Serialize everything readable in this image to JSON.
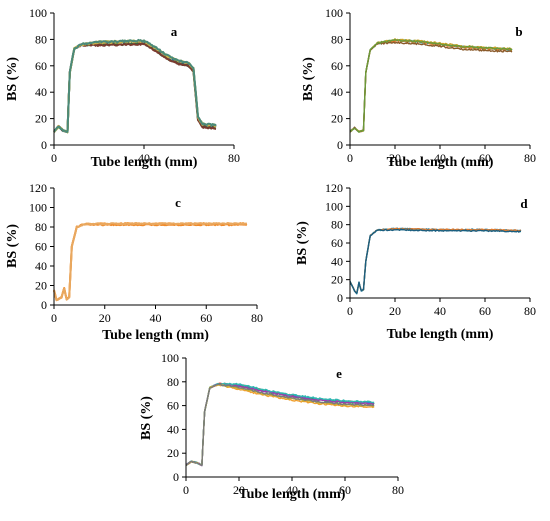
{
  "figure": {
    "panels": [
      {
        "label": "a",
        "xlabel": "Tube length (mm)",
        "ylabel": "BS (%)",
        "xlim": [
          0,
          80
        ],
        "ylim": [
          0,
          100
        ],
        "xticks": [
          "0",
          "40",
          "80"
        ],
        "yticks": [
          "0",
          "20",
          "40",
          "60",
          "80",
          "100"
        ],
        "colors": [
          "#2e5a8c",
          "#2f6b3f",
          "#7a3b2f",
          "#8ca23a",
          "#c9b04a",
          "#4a8a7a"
        ]
      },
      {
        "label": "b",
        "xlabel": "Tube length (mm)",
        "ylabel": "BS (%)",
        "xlim": [
          0,
          80
        ],
        "ylim": [
          0,
          100
        ],
        "xticks": [
          "0",
          "20",
          "40",
          "60",
          "80"
        ],
        "yticks": [
          "0",
          "20",
          "40",
          "60",
          "80",
          "100"
        ],
        "colors": [
          "#5b8fd6",
          "#2aa2b8",
          "#e07a2e",
          "#c9a227",
          "#8a5a2b",
          "#6a9a3a"
        ]
      },
      {
        "label": "c",
        "xlabel": "Tube length (mm)",
        "ylabel": "BS (%)",
        "xlim": [
          0,
          80
        ],
        "ylim": [
          0,
          120
        ],
        "xticks": [
          "0",
          "20",
          "40",
          "60",
          "80"
        ],
        "yticks": [
          "0",
          "20",
          "40",
          "60",
          "80",
          "100",
          "120"
        ],
        "colors": [
          "#f4a04a",
          "#f08a2a",
          "#e8a860"
        ]
      },
      {
        "label": "d",
        "xlabel": "Tube length (mm)",
        "ylabel": "BS (%)",
        "xlim": [
          0,
          80
        ],
        "ylim": [
          0,
          120
        ],
        "xticks": [
          "0",
          "20",
          "40",
          "60",
          "80"
        ],
        "yticks": [
          "0",
          "20",
          "40",
          "60",
          "80",
          "100",
          "120"
        ],
        "colors": [
          "#1e7fa0",
          "#2a9aa8",
          "#e07a2e",
          "#1a5e80"
        ]
      },
      {
        "label": "e",
        "xlabel": "Tube length (mm)",
        "ylabel": "BS (%)",
        "xlim": [
          0,
          80
        ],
        "ylim": [
          0,
          100
        ],
        "xticks": [
          "0",
          "20",
          "40",
          "60",
          "80"
        ],
        "yticks": [
          "0",
          "20",
          "40",
          "60",
          "80",
          "100"
        ],
        "colors": [
          "#e02a2a",
          "#f0a030",
          "#2a8ad0",
          "#2aa860",
          "#a03ab0",
          "#30b8b0",
          "#c8b030",
          "#7a7a7a"
        ]
      }
    ]
  },
  "chart_data": [
    {
      "type": "line",
      "label": "a",
      "xlim": [
        0,
        80
      ],
      "ylim": [
        0,
        100
      ],
      "series_profile": [
        [
          0,
          10
        ],
        [
          2,
          14
        ],
        [
          4,
          11
        ],
        [
          6,
          10
        ],
        [
          7,
          55
        ],
        [
          9,
          73
        ],
        [
          12,
          76
        ],
        [
          20,
          77
        ],
        [
          40,
          78
        ],
        [
          45,
          73
        ],
        [
          50,
          67
        ],
        [
          55,
          63
        ],
        [
          60,
          61
        ],
        [
          62,
          57
        ],
        [
          64,
          20
        ],
        [
          66,
          15
        ],
        [
          72,
          14
        ]
      ],
      "n_series": 6,
      "grid": false
    },
    {
      "type": "line",
      "label": "b",
      "xlim": [
        0,
        80
      ],
      "ylim": [
        0,
        100
      ],
      "series_profile": [
        [
          0,
          10
        ],
        [
          2,
          13
        ],
        [
          4,
          10
        ],
        [
          6,
          11
        ],
        [
          7,
          55
        ],
        [
          9,
          72
        ],
        [
          12,
          77
        ],
        [
          20,
          79
        ],
        [
          30,
          78
        ],
        [
          40,
          76
        ],
        [
          50,
          74
        ],
        [
          60,
          73
        ],
        [
          72,
          72
        ]
      ],
      "n_series": 6,
      "grid": false
    },
    {
      "type": "line",
      "label": "c",
      "xlim": [
        0,
        80
      ],
      "ylim": [
        0,
        120
      ],
      "series_profile": [
        [
          0,
          15
        ],
        [
          1,
          5
        ],
        [
          3,
          8
        ],
        [
          4,
          17
        ],
        [
          5,
          6
        ],
        [
          6,
          8
        ],
        [
          7,
          60
        ],
        [
          9,
          80
        ],
        [
          12,
          83
        ],
        [
          20,
          83
        ],
        [
          40,
          83
        ],
        [
          60,
          83
        ],
        [
          76,
          83
        ]
      ],
      "n_series": 3,
      "grid": false
    },
    {
      "type": "line",
      "label": "d",
      "xlim": [
        0,
        80
      ],
      "ylim": [
        0,
        120
      ],
      "series_profile": [
        [
          0,
          18
        ],
        [
          2,
          8
        ],
        [
          3,
          5
        ],
        [
          4,
          17
        ],
        [
          5,
          8
        ],
        [
          6,
          9
        ],
        [
          7,
          40
        ],
        [
          9,
          68
        ],
        [
          12,
          74
        ],
        [
          20,
          75
        ],
        [
          40,
          74
        ],
        [
          60,
          74
        ],
        [
          76,
          73
        ]
      ],
      "n_series": 4,
      "grid": false
    },
    {
      "type": "line",
      "label": "e",
      "xlim": [
        0,
        80
      ],
      "ylim": [
        0,
        100
      ],
      "series_profile": [
        [
          0,
          10
        ],
        [
          2,
          13
        ],
        [
          4,
          12
        ],
        [
          6,
          10
        ],
        [
          7,
          55
        ],
        [
          9,
          75
        ],
        [
          12,
          78
        ],
        [
          20,
          76
        ],
        [
          30,
          71
        ],
        [
          40,
          67
        ],
        [
          50,
          64
        ],
        [
          60,
          62
        ],
        [
          71,
          61
        ]
      ],
      "n_series": 8,
      "grid": false
    }
  ]
}
